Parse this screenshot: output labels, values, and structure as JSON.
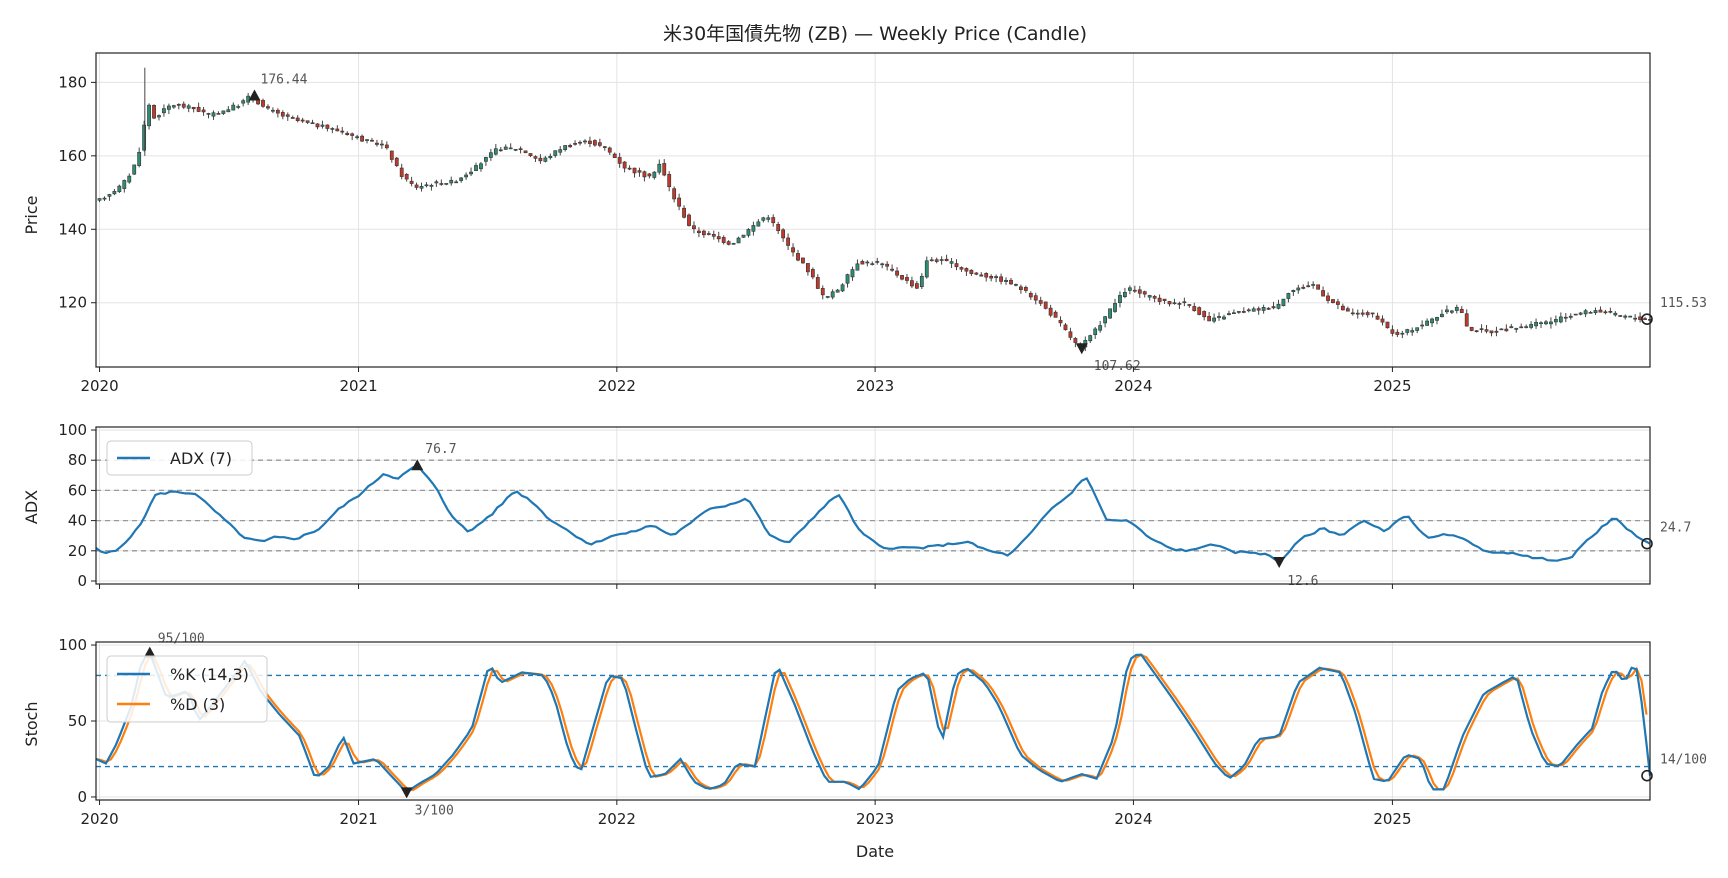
{
  "chart_data": {
    "type": "candlestick",
    "title": "米30年国債先物 (ZB) — Weekly Price (Candle)",
    "xlabel": "Date",
    "years": [
      "2020",
      "2021",
      "2022",
      "2023",
      "2024",
      "2025"
    ],
    "date_range": [
      "2019-12-27",
      "2025-12-31"
    ],
    "colors": {
      "up": "#2e8b74",
      "down": "#c0392b",
      "adx": "#1f77b4",
      "k": "#1f77b4",
      "d": "#ff7f0e",
      "marker": "#222222",
      "ref": "#1f77b4",
      "grid": "#e3e3e3"
    },
    "price": {
      "ylabel": "Price",
      "ylim": [
        102.5,
        188
      ],
      "yticks": [
        120,
        140,
        160,
        180
      ],
      "knots": [
        [
          "2020-01-01",
          147.5
        ],
        [
          "2020-02-05",
          152
        ],
        [
          "2020-02-20",
          156
        ],
        [
          "2020-03-05",
          164
        ],
        [
          "2020-03-12",
          176
        ],
        [
          "2020-03-19",
          170
        ],
        [
          "2020-04-15",
          174
        ],
        [
          "2020-05-15",
          173
        ],
        [
          "2020-06-10",
          171
        ],
        [
          "2020-07-20",
          174
        ],
        [
          "2020-08-05",
          176.4
        ],
        [
          "2020-08-25",
          173
        ],
        [
          "2020-10-01",
          170
        ],
        [
          "2020-12-15",
          166.5
        ],
        [
          "2021-01-15",
          164
        ],
        [
          "2021-02-10",
          163
        ],
        [
          "2021-03-05",
          155
        ],
        [
          "2021-03-25",
          151.5
        ],
        [
          "2021-04-20",
          152.5
        ],
        [
          "2021-05-20",
          153
        ],
        [
          "2021-06-20",
          157
        ],
        [
          "2021-07-20",
          162
        ],
        [
          "2021-08-20",
          162
        ],
        [
          "2021-09-20",
          158.5
        ],
        [
          "2021-10-20",
          162.5
        ],
        [
          "2021-11-25",
          164
        ],
        [
          "2021-12-20",
          162
        ],
        [
          "2022-01-15",
          157
        ],
        [
          "2022-02-20",
          154
        ],
        [
          "2022-03-05",
          158
        ],
        [
          "2022-03-25",
          149
        ],
        [
          "2022-04-20",
          140
        ],
        [
          "2022-05-20",
          138
        ],
        [
          "2022-06-15",
          136
        ],
        [
          "2022-07-10",
          140
        ],
        [
          "2022-08-05",
          144
        ],
        [
          "2022-09-05",
          135
        ],
        [
          "2022-10-05",
          128
        ],
        [
          "2022-10-25",
          121
        ],
        [
          "2022-11-15",
          124
        ],
        [
          "2022-12-10",
          131
        ],
        [
          "2023-01-10",
          131
        ],
        [
          "2023-02-10",
          127
        ],
        [
          "2023-03-05",
          124
        ],
        [
          "2023-03-20",
          132
        ],
        [
          "2023-04-20",
          131
        ],
        [
          "2023-05-20",
          128
        ],
        [
          "2023-06-20",
          127
        ],
        [
          "2023-07-20",
          125
        ],
        [
          "2023-08-20",
          121
        ],
        [
          "2023-09-20",
          115
        ],
        [
          "2023-10-20",
          107.6
        ],
        [
          "2023-11-10",
          112
        ],
        [
          "2023-12-10",
          120
        ],
        [
          "2023-12-27",
          124
        ],
        [
          "2024-01-20",
          122
        ],
        [
          "2024-02-20",
          120
        ],
        [
          "2024-03-20",
          120
        ],
        [
          "2024-04-20",
          115
        ],
        [
          "2024-05-20",
          117
        ],
        [
          "2024-06-20",
          118
        ],
        [
          "2024-07-25",
          119
        ],
        [
          "2024-08-10",
          123
        ],
        [
          "2024-09-15",
          125
        ],
        [
          "2024-10-05",
          121
        ],
        [
          "2024-11-05",
          117
        ],
        [
          "2024-12-05",
          117
        ],
        [
          "2025-01-10",
          111
        ],
        [
          "2025-02-15",
          114
        ],
        [
          "2025-03-15",
          117
        ],
        [
          "2025-04-10",
          119
        ],
        [
          "2025-04-20",
          113
        ],
        [
          "2025-05-20",
          112
        ],
        [
          "2025-06-20",
          113
        ],
        [
          "2025-07-20",
          114
        ],
        [
          "2025-08-20",
          115
        ],
        [
          "2025-09-20",
          117
        ],
        [
          "2025-10-20",
          118
        ],
        [
          "2025-11-20",
          116.5
        ],
        [
          "2025-12-31",
          115.5
        ]
      ],
      "spikes": [
        [
          "2020-03-05",
          184,
          160
        ]
      ],
      "max": {
        "date": "2020-08-07",
        "value": 176.44,
        "label": "176.44"
      },
      "min": {
        "date": "2023-10-20",
        "value": 107.62,
        "label": "107.62"
      },
      "last": {
        "date": "2025-12-31",
        "value": 115.53,
        "label": "115.53"
      }
    },
    "adx": {
      "ylabel": "ADX",
      "legend": "ADX (7)",
      "ylim": [
        -2,
        102
      ],
      "yticks": [
        0,
        20,
        40,
        60,
        80,
        100
      ],
      "hlines": [
        20,
        40,
        60,
        80
      ],
      "knots": [
        [
          "2019-12-27",
          22
        ],
        [
          "2020-01-05",
          18
        ],
        [
          "2020-01-25",
          20
        ],
        [
          "2020-02-25",
          35
        ],
        [
          "2020-03-20",
          57
        ],
        [
          "2020-04-10",
          59
        ],
        [
          "2020-05-15",
          58
        ],
        [
          "2020-06-15",
          45
        ],
        [
          "2020-07-25",
          28
        ],
        [
          "2020-08-20",
          26
        ],
        [
          "2020-09-05",
          29
        ],
        [
          "2020-10-05",
          28
        ],
        [
          "2020-11-05",
          34
        ],
        [
          "2020-12-05",
          48
        ],
        [
          "2021-01-05",
          58
        ],
        [
          "2021-02-05",
          71
        ],
        [
          "2021-02-25",
          68
        ],
        [
          "2021-03-25",
          76.7
        ],
        [
          "2021-04-20",
          62
        ],
        [
          "2021-05-10",
          45
        ],
        [
          "2021-06-05",
          32
        ],
        [
          "2021-07-10",
          45
        ],
        [
          "2021-08-10",
          60
        ],
        [
          "2021-09-05",
          52
        ],
        [
          "2021-09-25",
          42
        ],
        [
          "2021-10-25",
          33
        ],
        [
          "2021-11-25",
          24
        ],
        [
          "2021-12-25",
          30
        ],
        [
          "2022-01-20",
          32
        ],
        [
          "2022-02-20",
          37
        ],
        [
          "2022-03-20",
          30
        ],
        [
          "2022-04-15",
          38
        ],
        [
          "2022-05-10",
          48
        ],
        [
          "2022-06-05",
          50
        ],
        [
          "2022-07-05",
          55
        ],
        [
          "2022-08-05",
          30
        ],
        [
          "2022-09-01",
          25
        ],
        [
          "2022-10-05",
          42
        ],
        [
          "2022-11-10",
          58
        ],
        [
          "2022-12-10",
          33
        ],
        [
          "2023-01-10",
          22
        ],
        [
          "2023-02-10",
          22
        ],
        [
          "2023-03-10",
          22
        ],
        [
          "2023-04-10",
          24
        ],
        [
          "2023-05-10",
          26
        ],
        [
          "2023-06-10",
          20
        ],
        [
          "2023-07-10",
          17
        ],
        [
          "2023-08-10",
          32
        ],
        [
          "2023-09-05",
          47
        ],
        [
          "2023-10-05",
          58
        ],
        [
          "2023-10-25",
          70
        ],
        [
          "2023-11-25",
          40
        ],
        [
          "2023-12-25",
          40
        ],
        [
          "2024-01-25",
          28
        ],
        [
          "2024-02-25",
          21
        ],
        [
          "2024-03-25",
          20
        ],
        [
          "2024-04-20",
          25
        ],
        [
          "2024-05-20",
          19
        ],
        [
          "2024-06-20",
          19
        ],
        [
          "2024-07-10",
          17
        ],
        [
          "2024-07-25",
          12.6
        ],
        [
          "2024-08-25",
          28
        ],
        [
          "2024-09-25",
          35
        ],
        [
          "2024-10-20",
          30
        ],
        [
          "2024-11-20",
          40
        ],
        [
          "2024-12-20",
          33
        ],
        [
          "2025-01-20",
          44
        ],
        [
          "2025-02-20",
          28
        ],
        [
          "2025-03-20",
          31
        ],
        [
          "2025-04-20",
          26
        ],
        [
          "2025-05-20",
          18
        ],
        [
          "2025-06-20",
          19
        ],
        [
          "2025-07-20",
          15
        ],
        [
          "2025-08-20",
          14
        ],
        [
          "2025-09-10",
          15
        ],
        [
          "2025-10-05",
          28
        ],
        [
          "2025-11-10",
          42
        ],
        [
          "2025-12-05",
          32
        ],
        [
          "2025-12-31",
          24.7
        ]
      ],
      "max": {
        "date": "2021-03-25",
        "value": 76.7,
        "label": "76.7"
      },
      "min": {
        "date": "2024-07-25",
        "value": 12.6,
        "label": "12.6"
      },
      "last": {
        "date": "2025-12-31",
        "value": 24.7,
        "label": "24.7"
      }
    },
    "stoch": {
      "ylabel": "Stoch",
      "ylim": [
        -2,
        102
      ],
      "yticks": [
        0,
        50,
        100
      ],
      "hlines": [
        20,
        80
      ],
      "legend_k": "%K (14,3)",
      "legend_d": "%D (3)",
      "k_knots": [
        [
          "2019-12-27",
          25
        ],
        [
          "2020-01-10",
          22
        ],
        [
          "2020-01-25",
          35
        ],
        [
          "2020-02-15",
          60
        ],
        [
          "2020-03-01",
          90
        ],
        [
          "2020-03-12",
          95
        ],
        [
          "2020-04-05",
          65
        ],
        [
          "2020-05-05",
          70
        ],
        [
          "2020-05-20",
          50
        ],
        [
          "2020-06-15",
          65
        ],
        [
          "2020-07-10",
          80
        ],
        [
          "2020-07-25",
          90
        ],
        [
          "2020-08-15",
          70
        ],
        [
          "2020-09-10",
          55
        ],
        [
          "2020-10-10",
          40
        ],
        [
          "2020-11-01",
          12
        ],
        [
          "2020-11-20",
          20
        ],
        [
          "2020-12-10",
          40
        ],
        [
          "2020-12-25",
          22
        ],
        [
          "2021-01-25",
          25
        ],
        [
          "2021-02-20",
          12
        ],
        [
          "2021-03-10",
          3
        ],
        [
          "2021-03-25",
          8
        ],
        [
          "2021-04-20",
          15
        ],
        [
          "2021-05-15",
          28
        ],
        [
          "2021-06-10",
          45
        ],
        [
          "2021-07-05",
          88
        ],
        [
          "2021-07-20",
          75
        ],
        [
          "2021-08-20",
          82
        ],
        [
          "2021-09-20",
          80
        ],
        [
          "2021-10-05",
          65
        ],
        [
          "2021-10-25",
          30
        ],
        [
          "2021-11-10",
          15
        ],
        [
          "2021-11-25",
          40
        ],
        [
          "2021-12-20",
          80
        ],
        [
          "2022-01-10",
          78
        ],
        [
          "2022-01-25",
          50
        ],
        [
          "2022-02-15",
          13
        ],
        [
          "2022-03-10",
          15
        ],
        [
          "2022-04-01",
          25
        ],
        [
          "2022-04-20",
          10
        ],
        [
          "2022-05-10",
          5
        ],
        [
          "2022-06-01",
          8
        ],
        [
          "2022-06-20",
          22
        ],
        [
          "2022-07-15",
          20
        ],
        [
          "2022-08-15",
          88
        ],
        [
          "2022-09-10",
          60
        ],
        [
          "2022-10-05",
          30
        ],
        [
          "2022-10-25",
          10
        ],
        [
          "2022-11-20",
          10
        ],
        [
          "2022-12-10",
          5
        ],
        [
          "2023-01-05",
          20
        ],
        [
          "2023-02-01",
          70
        ],
        [
          "2023-02-20",
          78
        ],
        [
          "2023-03-15",
          82
        ],
        [
          "2023-04-05",
          35
        ],
        [
          "2023-04-25",
          80
        ],
        [
          "2023-05-10",
          85
        ],
        [
          "2023-06-05",
          75
        ],
        [
          "2023-06-25",
          60
        ],
        [
          "2023-07-25",
          28
        ],
        [
          "2023-08-20",
          18
        ],
        [
          "2023-09-20",
          10
        ],
        [
          "2023-10-20",
          15
        ],
        [
          "2023-11-10",
          12
        ],
        [
          "2023-12-05",
          40
        ],
        [
          "2023-12-25",
          90
        ],
        [
          "2024-01-10",
          95
        ],
        [
          "2024-02-05",
          78
        ],
        [
          "2024-02-25",
          65
        ],
        [
          "2024-03-25",
          45
        ],
        [
          "2024-04-25",
          22
        ],
        [
          "2024-05-15",
          12
        ],
        [
          "2024-06-05",
          20
        ],
        [
          "2024-06-25",
          38
        ],
        [
          "2024-07-25",
          40
        ],
        [
          "2024-08-20",
          75
        ],
        [
          "2024-09-20",
          85
        ],
        [
          "2024-10-20",
          82
        ],
        [
          "2024-11-10",
          55
        ],
        [
          "2024-12-05",
          12
        ],
        [
          "2024-12-25",
          10
        ],
        [
          "2025-01-20",
          28
        ],
        [
          "2025-02-10",
          25
        ],
        [
          "2025-02-25",
          5
        ],
        [
          "2025-03-15",
          5
        ],
        [
          "2025-04-10",
          40
        ],
        [
          "2025-05-10",
          68
        ],
        [
          "2025-06-05",
          75
        ],
        [
          "2025-06-25",
          80
        ],
        [
          "2025-07-15",
          45
        ],
        [
          "2025-08-05",
          22
        ],
        [
          "2025-08-25",
          20
        ],
        [
          "2025-09-20",
          35
        ],
        [
          "2025-10-10",
          45
        ],
        [
          "2025-10-25",
          70
        ],
        [
          "2025-11-10",
          85
        ],
        [
          "2025-11-25",
          75
        ],
        [
          "2025-12-10",
          90
        ],
        [
          "2025-12-20",
          60
        ],
        [
          "2025-12-31",
          14
        ]
      ],
      "d_lag_days": 10,
      "max": {
        "date": "2020-03-12",
        "value": 95,
        "label": "95/100"
      },
      "min": {
        "date": "2021-03-10",
        "value": 3,
        "label": "3/100"
      },
      "last": {
        "date": "2025-12-31",
        "value": 14,
        "label": "14/100"
      }
    }
  }
}
